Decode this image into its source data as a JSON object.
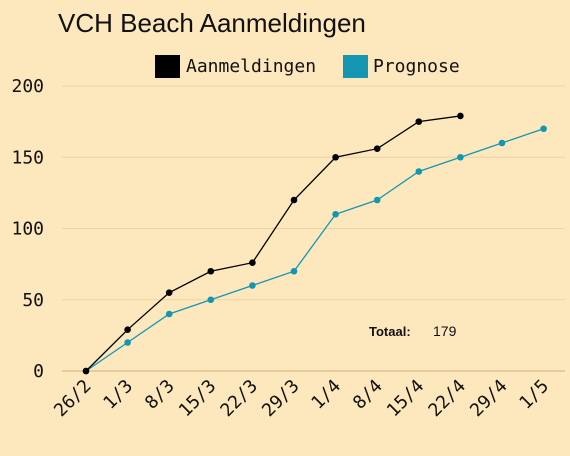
{
  "chart_data": {
    "type": "line",
    "title": "VCH Beach Aanmeldingen",
    "xlabel": "",
    "ylabel": "",
    "categories": [
      "26/2",
      "1/3",
      "8/3",
      "15/3",
      "22/3",
      "29/3",
      "1/4",
      "8/4",
      "15/4",
      "22/4",
      "29/4",
      "1/5"
    ],
    "ylim": [
      0,
      200
    ],
    "yticks": [
      0,
      50,
      100,
      150,
      200
    ],
    "grid": true,
    "legend_position": "top",
    "series": [
      {
        "name": "Aanmeldingen",
        "color": "#000000",
        "values": [
          0,
          29,
          55,
          70,
          76,
          120,
          150,
          156,
          175,
          179,
          null,
          null
        ]
      },
      {
        "name": "Prognose",
        "color": "#1496b3",
        "values": [
          0,
          20,
          40,
          50,
          60,
          70,
          110,
          120,
          140,
          150,
          160,
          170
        ]
      }
    ],
    "annotation": {
      "label": "Totaal:",
      "value": "179"
    }
  }
}
